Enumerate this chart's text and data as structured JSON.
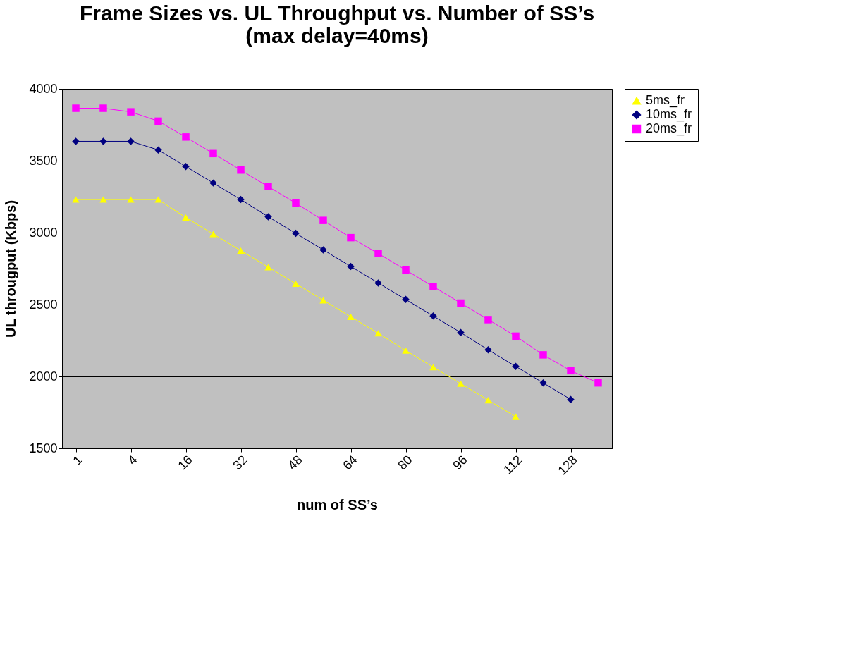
{
  "chart_data": {
    "type": "line",
    "title": "Frame Sizes vs. UL Throughput vs. Number of SS’s (max delay=40ms)",
    "xlabel": "num of SS’s",
    "ylabel": "UL througput (Kbps)",
    "categories": [
      "1",
      null,
      "4",
      null,
      "16",
      null,
      "32",
      null,
      "48",
      null,
      "64",
      null,
      "80",
      null,
      "96",
      null,
      "112",
      null,
      "128",
      null
    ],
    "series": [
      {
        "name": "5ms_fr",
        "color": "#ffff00",
        "marker": "triangle",
        "values": [
          3230,
          3230,
          3230,
          3230,
          3105,
          2990,
          2875,
          2760,
          2645,
          2530,
          2415,
          2300,
          2180,
          2065,
          1950,
          1835,
          1720,
          null,
          null,
          null
        ]
      },
      {
        "name": "10ms_fr",
        "color": "#000080",
        "marker": "diamond",
        "values": [
          3635,
          3635,
          3635,
          3575,
          3460,
          3345,
          3230,
          3110,
          2995,
          2880,
          2765,
          2650,
          2535,
          2420,
          2305,
          2185,
          2070,
          1955,
          1840,
          null
        ]
      },
      {
        "name": "20ms_fr",
        "color": "#ff00ff",
        "marker": "square",
        "values": [
          3865,
          3865,
          3840,
          3775,
          3665,
          3550,
          3435,
          3320,
          3205,
          3085,
          2965,
          2855,
          2740,
          2625,
          2510,
          2395,
          2280,
          2150,
          2040,
          1955
        ]
      }
    ],
    "ylim": [
      1500,
      4000
    ],
    "yticks": [
      1500,
      2000,
      2500,
      3000,
      3500,
      4000
    ],
    "grid": "y",
    "legend": "right"
  }
}
